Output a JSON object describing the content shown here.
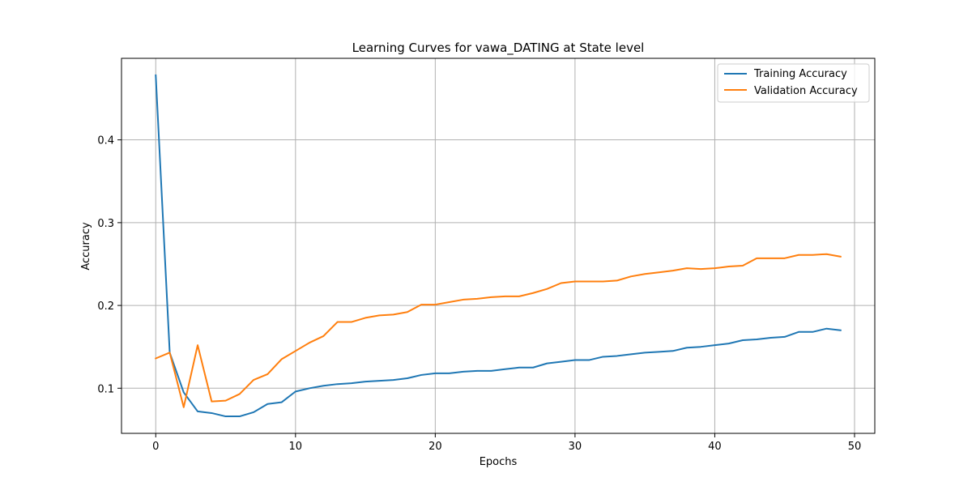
{
  "chart_data": {
    "type": "line",
    "title": "Learning Curves for vawa_DATING at State level",
    "xlabel": "Epochs",
    "ylabel": "Accuracy",
    "xlim": [
      -2.45,
      51.45
    ],
    "ylim": [
      0.0455,
      0.4985
    ],
    "xticks": [
      0,
      10,
      20,
      30,
      40,
      50
    ],
    "yticks": [
      0.1,
      0.2,
      0.3,
      0.4
    ],
    "xtick_labels": [
      "0",
      "10",
      "20",
      "30",
      "40",
      "50"
    ],
    "ytick_labels": [
      "0.1",
      "0.2",
      "0.3",
      "0.4"
    ],
    "grid": true,
    "legend_position": "top-right",
    "x": [
      0,
      1,
      2,
      3,
      4,
      5,
      6,
      7,
      8,
      9,
      10,
      11,
      12,
      13,
      14,
      15,
      16,
      17,
      18,
      19,
      20,
      21,
      22,
      23,
      24,
      25,
      26,
      27,
      28,
      29,
      30,
      31,
      32,
      33,
      34,
      35,
      36,
      37,
      38,
      39,
      40,
      41,
      42,
      43,
      44,
      45,
      46,
      47,
      48,
      49
    ],
    "series": [
      {
        "name": "Training Accuracy",
        "color": "#1f77b4",
        "values": [
          0.478,
          0.143,
          0.095,
          0.072,
          0.07,
          0.066,
          0.066,
          0.071,
          0.081,
          0.083,
          0.096,
          0.1,
          0.103,
          0.105,
          0.106,
          0.108,
          0.109,
          0.11,
          0.112,
          0.116,
          0.118,
          0.118,
          0.12,
          0.121,
          0.121,
          0.123,
          0.125,
          0.125,
          0.13,
          0.132,
          0.134,
          0.134,
          0.138,
          0.139,
          0.141,
          0.143,
          0.144,
          0.145,
          0.149,
          0.15,
          0.152,
          0.154,
          0.158,
          0.159,
          0.161,
          0.162,
          0.168,
          0.168,
          0.172,
          0.17
        ]
      },
      {
        "name": "Validation Accuracy",
        "color": "#ff7f0e",
        "values": [
          0.136,
          0.143,
          0.077,
          0.152,
          0.084,
          0.085,
          0.093,
          0.11,
          0.117,
          0.135,
          0.145,
          0.155,
          0.163,
          0.18,
          0.18,
          0.185,
          0.188,
          0.189,
          0.192,
          0.201,
          0.201,
          0.204,
          0.207,
          0.208,
          0.21,
          0.211,
          0.211,
          0.215,
          0.22,
          0.227,
          0.229,
          0.229,
          0.229,
          0.23,
          0.235,
          0.238,
          0.24,
          0.242,
          0.245,
          0.244,
          0.245,
          0.247,
          0.248,
          0.257,
          0.257,
          0.257,
          0.261,
          0.261,
          0.262,
          0.259
        ]
      }
    ]
  }
}
